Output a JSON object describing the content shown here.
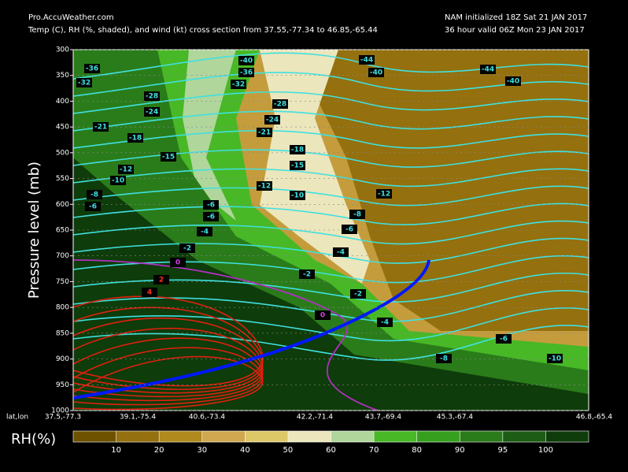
{
  "chart_data": {
    "type": "cross_section",
    "source": "Pro.AccuWeather.com",
    "title": "Temp (C), RH (%, shaded), and wind (kt) cross section from 37.55,-77.34 to 46.85,-65.44",
    "init_text": "NAM initialized 18Z Sat 21 JAN 2017",
    "valid_text": "36 hour valid 06Z Mon 23 JAN 2017",
    "ylabel": "Pressure level (mb)",
    "ylim": [
      1000,
      300
    ],
    "yticks": [
      300,
      350,
      400,
      450,
      500,
      550,
      600,
      650,
      700,
      750,
      800,
      850,
      900,
      950,
      1000
    ],
    "xlabel": "lat,lon",
    "categories": [
      "37.5,-77.3",
      "39.1,-75.4",
      "40.6,-73.4",
      "42.2,-71.4",
      "43.7,-69.4",
      "45.3,-67.4",
      "46.8,-65.4"
    ],
    "colorbar": {
      "label": "RH(%)",
      "ticks": [
        10,
        20,
        30,
        40,
        50,
        60,
        70,
        80,
        90,
        95,
        100
      ],
      "colors": [
        "#6e5200",
        "#94700e",
        "#b08a1c",
        "#cfa850",
        "#ddc868",
        "#ebe6bc",
        "#b0d69c",
        "#48b826",
        "#36a01e",
        "#2a7c1a",
        "#1c5c14",
        "#0e3c0a"
      ]
    },
    "contour_labels": [
      -36,
      -32,
      -40,
      -36,
      -32,
      -44,
      -40,
      -44,
      -40,
      -28,
      -24,
      -28,
      -24,
      -21,
      -18,
      -21,
      -18,
      -15,
      -15,
      -12,
      -10,
      -12,
      -10,
      -12,
      -8,
      -6,
      -6,
      -6,
      -8,
      -4,
      -6,
      -2,
      -4,
      -2,
      -2,
      -4,
      -6,
      -8,
      -10,
      0,
      0,
      2,
      4
    ]
  }
}
